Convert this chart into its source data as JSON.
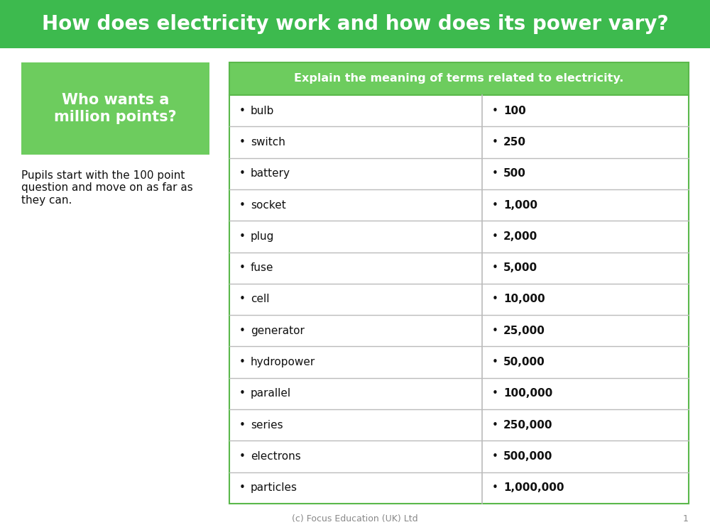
{
  "title": "How does electricity work and how does its power vary?",
  "title_bg_color": "#3dba4e",
  "title_text_color": "#ffffff",
  "title_fontsize": 20,
  "left_box_title": "Who wants a\nmillion points?",
  "left_box_bg": "#6dcc5e",
  "left_box_text_color": "#ffffff",
  "left_body_text": "Pupils start with the 100 point\nquestion and move on as far as\nthey can.",
  "table_header": "Explain the meaning of terms related to electricity.",
  "table_header_bg": "#6dcc5e",
  "table_header_text_color": "#ffffff",
  "table_border_color": "#5ab84b",
  "terms": [
    "bulb",
    "switch",
    "battery",
    "socket",
    "plug",
    "fuse",
    "cell",
    "generator",
    "hydropower",
    "parallel",
    "series",
    "electrons",
    "particles"
  ],
  "points": [
    "100",
    "250",
    "500",
    "1,000",
    "2,000",
    "5,000",
    "10,000",
    "25,000",
    "50,000",
    "100,000",
    "250,000",
    "500,000",
    "1,000,000"
  ],
  "footer": "(c) Focus Education (UK) Ltd",
  "footer_page": "1",
  "bg_color": "#ffffff",
  "row_line_color": "#bbbbbb",
  "col_split": 0.55
}
